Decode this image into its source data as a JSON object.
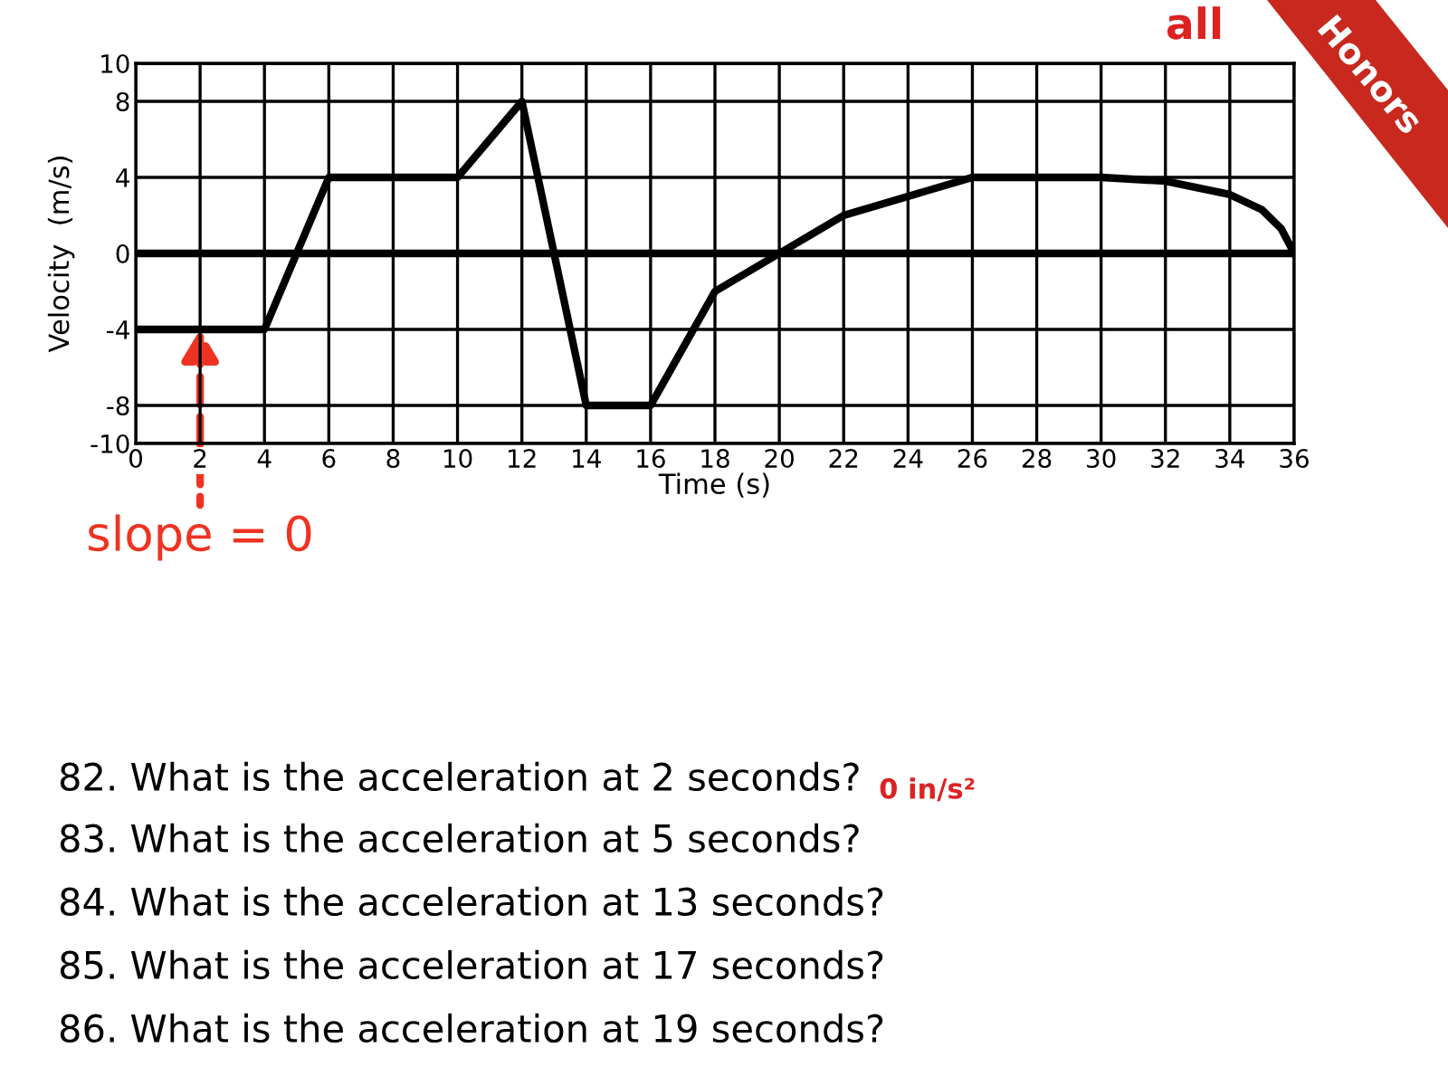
{
  "chart_data": {
    "type": "line",
    "xlabel": "Time (s)",
    "ylabel": "Velocity  (m/s)",
    "x": [
      0,
      4,
      6,
      10,
      12,
      14,
      16,
      18,
      20,
      22,
      24,
      26,
      30,
      32,
      34,
      35,
      35.6,
      36
    ],
    "series": [
      {
        "color": "#000000",
        "values": [
          -4,
          -4,
          4,
          4,
          8,
          -8,
          -8,
          -2,
          0,
          2,
          3,
          4,
          4,
          3.8,
          3.1,
          2.3,
          1.3,
          0
        ]
      }
    ],
    "xlim": [
      0,
      36
    ],
    "xticks": [
      0,
      2,
      4,
      6,
      8,
      10,
      12,
      14,
      16,
      18,
      20,
      22,
      24,
      26,
      28,
      30,
      32,
      34,
      36
    ],
    "ylim": [
      -10,
      10
    ],
    "yticks": [
      -10,
      -8,
      -4,
      0,
      4,
      8,
      10
    ],
    "grid": true,
    "marker": "none",
    "line_style": "solid",
    "legend": false,
    "ref_lines": [
      {
        "axis": "y",
        "value": 0,
        "color": "#000000"
      }
    ],
    "annotations": [
      {
        "text": "slope = 0",
        "x": 2,
        "y": -4
      },
      "all",
      "Honors",
      "82. What is the acceleration at 2 seconds?",
      "83. What is the acceleration at 5 seconds?",
      "84. What is the acceleration at 13 seconds?",
      "85. What is the acceleration at 17 seconds?",
      "86. What is the acceleration at 19 seconds?",
      "0 in/s²"
    ]
  }
}
